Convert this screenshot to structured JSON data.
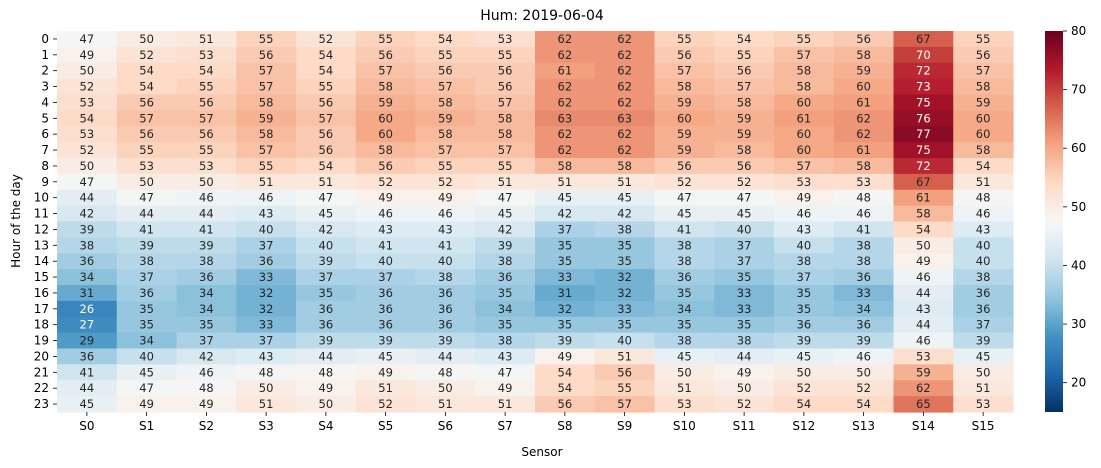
{
  "chart_data": {
    "type": "heatmap",
    "title": "Hum: 2019-06-04",
    "xlabel": "Sensor",
    "ylabel": "Hour of the day",
    "x_categories": [
      "S0",
      "S1",
      "S2",
      "S3",
      "S4",
      "S5",
      "S6",
      "S7",
      "S8",
      "S9",
      "S10",
      "S11",
      "S12",
      "S13",
      "S14",
      "S15"
    ],
    "y_categories": [
      "0",
      "1",
      "2",
      "3",
      "4",
      "5",
      "6",
      "7",
      "8",
      "9",
      "10",
      "11",
      "12",
      "13",
      "14",
      "15",
      "16",
      "17",
      "18",
      "19",
      "20",
      "21",
      "22",
      "23"
    ],
    "values": [
      [
        47,
        50,
        51,
        55,
        52,
        55,
        54,
        53,
        62,
        62,
        55,
        54,
        55,
        56,
        67,
        55
      ],
      [
        49,
        52,
        53,
        56,
        54,
        56,
        55,
        55,
        62,
        62,
        56,
        55,
        57,
        58,
        70,
        56
      ],
      [
        50,
        54,
        54,
        57,
        54,
        57,
        56,
        56,
        61,
        62,
        57,
        56,
        58,
        59,
        72,
        57
      ],
      [
        52,
        54,
        55,
        57,
        55,
        58,
        57,
        56,
        62,
        62,
        58,
        57,
        58,
        60,
        73,
        58
      ],
      [
        53,
        56,
        56,
        58,
        56,
        59,
        58,
        57,
        62,
        62,
        59,
        58,
        60,
        61,
        75,
        59
      ],
      [
        54,
        57,
        57,
        59,
        57,
        60,
        59,
        58,
        63,
        63,
        60,
        59,
        61,
        62,
        76,
        60
      ],
      [
        53,
        56,
        56,
        58,
        56,
        60,
        58,
        58,
        62,
        62,
        59,
        59,
        60,
        62,
        77,
        60
      ],
      [
        52,
        55,
        55,
        57,
        56,
        58,
        57,
        57,
        62,
        62,
        59,
        58,
        60,
        61,
        75,
        58
      ],
      [
        50,
        53,
        53,
        55,
        54,
        56,
        55,
        55,
        58,
        58,
        56,
        56,
        57,
        58,
        72,
        54
      ],
      [
        47,
        50,
        50,
        51,
        51,
        52,
        52,
        51,
        51,
        51,
        52,
        52,
        53,
        53,
        67,
        51
      ],
      [
        44,
        47,
        46,
        46,
        47,
        49,
        49,
        47,
        45,
        45,
        47,
        47,
        49,
        48,
        61,
        48
      ],
      [
        42,
        44,
        44,
        43,
        45,
        46,
        46,
        45,
        42,
        42,
        45,
        45,
        46,
        46,
        58,
        46
      ],
      [
        39,
        41,
        41,
        40,
        42,
        43,
        43,
        42,
        37,
        38,
        41,
        40,
        43,
        41,
        54,
        43
      ],
      [
        38,
        39,
        39,
        37,
        40,
        41,
        41,
        39,
        35,
        35,
        38,
        37,
        40,
        38,
        50,
        40
      ],
      [
        36,
        38,
        38,
        36,
        39,
        40,
        40,
        38,
        35,
        35,
        38,
        37,
        38,
        38,
        49,
        40
      ],
      [
        34,
        37,
        36,
        33,
        37,
        37,
        38,
        36,
        33,
        32,
        36,
        35,
        37,
        36,
        46,
        38
      ],
      [
        31,
        36,
        34,
        32,
        35,
        36,
        36,
        35,
        31,
        32,
        35,
        33,
        35,
        33,
        44,
        36
      ],
      [
        26,
        35,
        34,
        32,
        36,
        36,
        36,
        34,
        32,
        33,
        34,
        33,
        35,
        34,
        43,
        36
      ],
      [
        27,
        35,
        35,
        33,
        36,
        36,
        36,
        35,
        35,
        35,
        35,
        35,
        36,
        36,
        44,
        37
      ],
      [
        29,
        34,
        37,
        37,
        39,
        39,
        39,
        38,
        39,
        40,
        38,
        38,
        39,
        39,
        46,
        39
      ],
      [
        36,
        40,
        42,
        43,
        44,
        45,
        44,
        43,
        49,
        51,
        45,
        44,
        45,
        46,
        53,
        45
      ],
      [
        41,
        45,
        46,
        48,
        48,
        49,
        48,
        47,
        54,
        56,
        50,
        49,
        50,
        50,
        59,
        50
      ],
      [
        44,
        47,
        48,
        50,
        49,
        51,
        50,
        49,
        54,
        55,
        51,
        50,
        52,
        52,
        62,
        51
      ],
      [
        45,
        49,
        49,
        51,
        50,
        52,
        51,
        51,
        56,
        57,
        53,
        52,
        54,
        54,
        65,
        53
      ]
    ],
    "colormap": "RdBu_r",
    "vmin": 15,
    "vmax": 80,
    "colorbar_ticks": [
      20,
      30,
      40,
      50,
      60,
      70,
      80
    ],
    "annotated": true
  }
}
